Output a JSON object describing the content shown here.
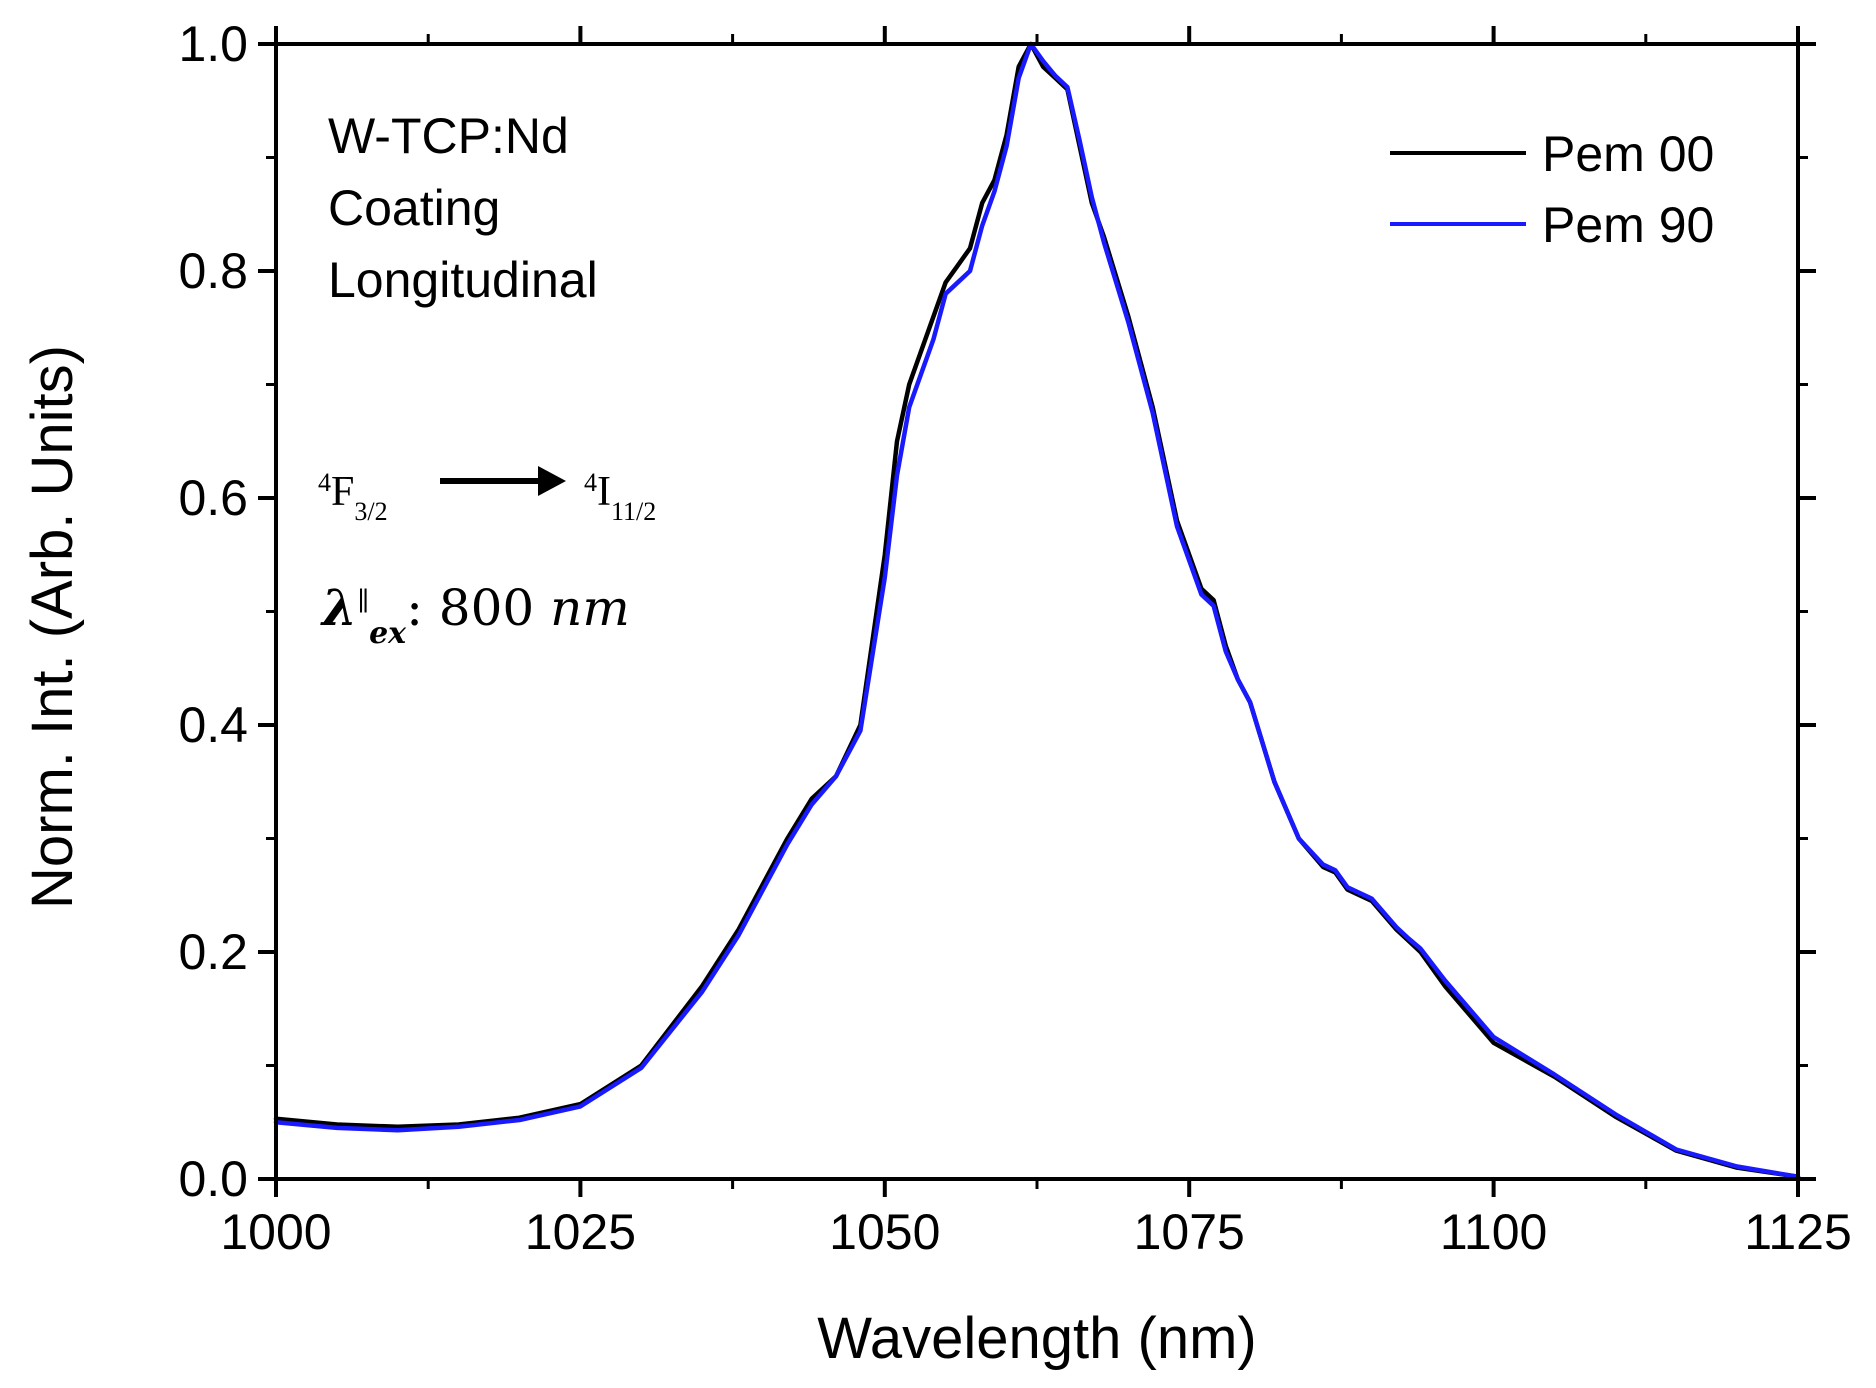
{
  "chart_data": {
    "type": "line",
    "xlabel": "Wavelength (nm)",
    "ylabel": "Norm. Int. (Arb. Units)",
    "xlim": [
      1000,
      1125
    ],
    "ylim": [
      0.0,
      1.0
    ],
    "xticks": [
      "1000",
      "1025",
      "1050",
      "1075",
      "1100",
      "1125"
    ],
    "yticks": [
      "0.0",
      "0.2",
      "0.4",
      "0.6",
      "0.8",
      "1.0"
    ],
    "grid": false,
    "legend_position": "top-right",
    "annotations": {
      "line1": "W-TCP:Nd",
      "line2": "Coating",
      "line3": "Longitudinal",
      "transition_from_sup": "4",
      "transition_from": "F",
      "transition_from_sub": "3/2",
      "transition_to_sup": "4",
      "transition_to": "I",
      "transition_to_sub": "11/2",
      "excitation_symbol": "λ",
      "excitation_sup": "∥",
      "excitation_sub": "ex",
      "excitation_value": ": 800 ",
      "excitation_unit": "nm"
    },
    "x": [
      1000,
      1005,
      1010,
      1015,
      1020,
      1025,
      1030,
      1035,
      1038,
      1040,
      1042,
      1044,
      1046,
      1048,
      1050,
      1051,
      1052,
      1054,
      1055,
      1056,
      1057,
      1058,
      1059,
      1060,
      1061,
      1062,
      1063,
      1064,
      1065,
      1066,
      1067,
      1068,
      1070,
      1072,
      1074,
      1076,
      1077,
      1078,
      1079,
      1080,
      1082,
      1084,
      1086,
      1087,
      1088,
      1090,
      1092,
      1093,
      1094,
      1096,
      1100,
      1105,
      1110,
      1115,
      1120,
      1125
    ],
    "series": [
      {
        "name": "Pem 00",
        "color": "#000000",
        "values": [
          0.053,
          0.048,
          0.046,
          0.048,
          0.054,
          0.066,
          0.1,
          0.17,
          0.22,
          0.26,
          0.3,
          0.335,
          0.355,
          0.4,
          0.55,
          0.65,
          0.7,
          0.76,
          0.79,
          0.805,
          0.82,
          0.86,
          0.88,
          0.92,
          0.98,
          1.0,
          0.98,
          0.97,
          0.96,
          0.91,
          0.86,
          0.83,
          0.76,
          0.68,
          0.58,
          0.52,
          0.51,
          0.47,
          0.44,
          0.42,
          0.35,
          0.3,
          0.275,
          0.27,
          0.255,
          0.245,
          0.22,
          0.21,
          0.2,
          0.17,
          0.12,
          0.09,
          0.055,
          0.025,
          0.01,
          0.002
        ]
      },
      {
        "name": "Pem 90",
        "color": "#1a1aff",
        "values": [
          0.05,
          0.045,
          0.043,
          0.046,
          0.052,
          0.064,
          0.098,
          0.165,
          0.215,
          0.255,
          0.295,
          0.33,
          0.355,
          0.395,
          0.53,
          0.62,
          0.68,
          0.74,
          0.78,
          0.79,
          0.8,
          0.84,
          0.87,
          0.91,
          0.97,
          1.0,
          0.985,
          0.972,
          0.962,
          0.915,
          0.865,
          0.825,
          0.755,
          0.675,
          0.575,
          0.515,
          0.505,
          0.465,
          0.44,
          0.42,
          0.35,
          0.3,
          0.277,
          0.272,
          0.257,
          0.247,
          0.222,
          0.212,
          0.203,
          0.175,
          0.125,
          0.092,
          0.057,
          0.026,
          0.011,
          0.002
        ]
      }
    ]
  }
}
